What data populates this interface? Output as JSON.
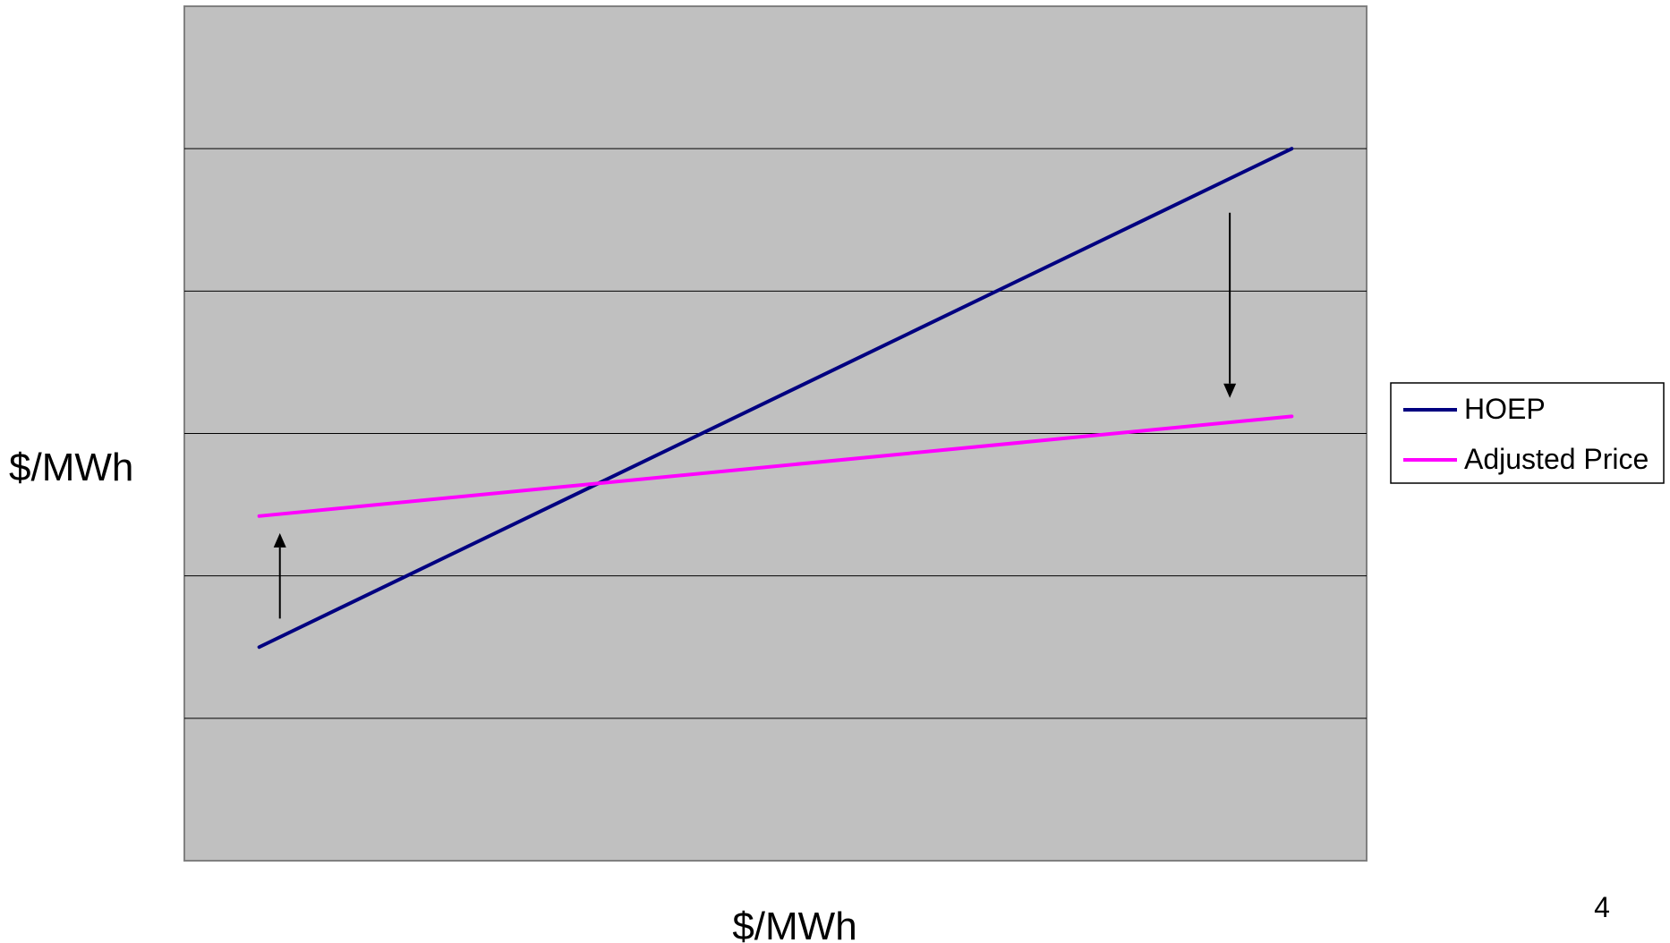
{
  "chart_data": {
    "type": "line",
    "title": "",
    "xlabel": "$/MWh",
    "ylabel": "$/MWh",
    "x": [
      0,
      1
    ],
    "xlim": [
      -0.0725,
      1.0725
    ],
    "ylim": [
      0,
      6
    ],
    "grid": true,
    "gridlines_y": [
      1,
      2,
      3,
      4,
      5
    ],
    "legend_position": "right",
    "series": [
      {
        "name": "HOEP",
        "color": "#000080",
        "values": [
          1.5,
          5.0
        ]
      },
      {
        "name": "Adjusted Price",
        "color": "#ff00ff",
        "values": [
          2.42,
          3.12
        ]
      }
    ],
    "annotations": [
      {
        "type": "arrow",
        "x": 0.02,
        "from": 1.7,
        "to": 2.3,
        "direction": "up"
      },
      {
        "type": "arrow",
        "x": 0.94,
        "from": 4.55,
        "to": 3.25,
        "direction": "down"
      }
    ],
    "plot_background": "#c0c0c0"
  },
  "page_number": "4"
}
